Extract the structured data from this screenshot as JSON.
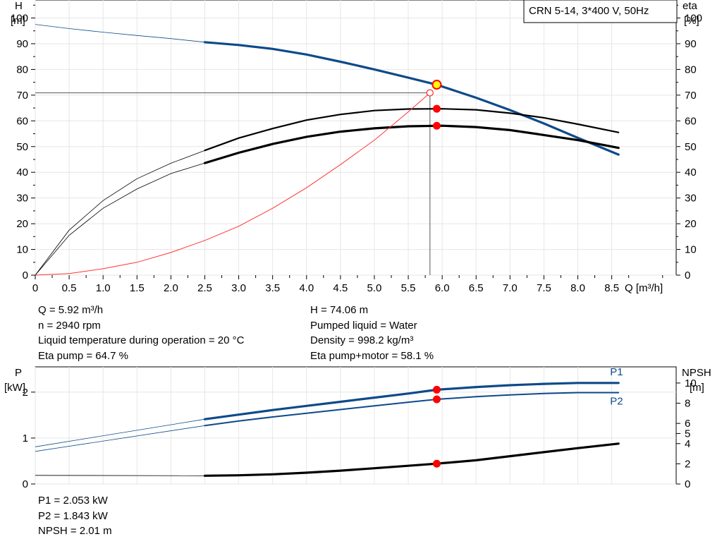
{
  "chart_data": [
    {
      "type": "line",
      "title": "CRN 5-14, 3*400 V, 50Hz",
      "xlabel": "Q [m³/h]",
      "ylabel_left_unit": "H",
      "ylabel_left_sub": "[m]",
      "ylabel_right_unit": "eta",
      "ylabel_right_sub": "[%]",
      "xlim": [
        0,
        9.45
      ],
      "ylim_left": [
        0,
        107
      ],
      "ylim_right": [
        0,
        107
      ],
      "x_ticks": [
        0,
        0.5,
        1.0,
        1.5,
        2.0,
        2.5,
        3.0,
        3.5,
        4.0,
        4.5,
        5.0,
        5.5,
        6.0,
        6.5,
        7.0,
        7.5,
        8.0,
        8.5
      ],
      "x_tick_labels": [
        "0",
        "0.5",
        "1.0",
        "1.5",
        "2.0",
        "2.5",
        "3.0",
        "3.5",
        "4.0",
        "4.5",
        "5.0",
        "5.5",
        "6.0",
        "6.5",
        "7.0",
        "7.5",
        "8.0",
        "8.5"
      ],
      "y_ticks": [
        0,
        10,
        20,
        30,
        40,
        50,
        60,
        70,
        80,
        90,
        100
      ],
      "y_tick_labels": [
        "0",
        "10",
        "20",
        "30",
        "40",
        "50",
        "60",
        "70",
        "80",
        "90",
        "100"
      ],
      "series": [
        {
          "key": "H",
          "axis": "left",
          "color": "#0d4a8a",
          "x_thin": [
            0,
            0.5,
            1.0,
            1.5,
            2.0,
            2.5
          ],
          "y_thin": [
            97.5,
            95.9,
            94.5,
            93.2,
            92.0,
            90.6
          ],
          "x": [
            2.5,
            3.0,
            3.5,
            4.0,
            4.5,
            5.0,
            5.5,
            5.92,
            6.5,
            7.0,
            7.5,
            8.0,
            8.6
          ],
          "y": [
            90.6,
            89.5,
            88.0,
            85.8,
            83.0,
            80.0,
            76.8,
            74.06,
            69.0,
            64.2,
            59.0,
            53.4,
            46.9
          ]
        },
        {
          "key": "eta_pump",
          "axis": "right",
          "color": "#000000",
          "x_thin": [
            0,
            0.5,
            1.0,
            1.5,
            2.0,
            2.5
          ],
          "y_thin": [
            0,
            17.5,
            29.0,
            37.5,
            43.5,
            48.5
          ],
          "x": [
            2.5,
            3.0,
            3.5,
            4.0,
            4.5,
            5.0,
            5.5,
            6.0,
            6.5,
            7.0,
            7.5,
            8.0,
            8.6
          ],
          "y": [
            48.5,
            53.3,
            57.0,
            60.3,
            62.5,
            64.0,
            64.6,
            64.7,
            64.3,
            63.0,
            61.2,
            58.7,
            55.5
          ]
        },
        {
          "key": "eta_total",
          "axis": "right",
          "color": "#000000",
          "x_thin": [
            0,
            0.5,
            1.0,
            1.5,
            2.0,
            2.5
          ],
          "y_thin": [
            0,
            15.5,
            26.0,
            33.5,
            39.5,
            43.6
          ],
          "x": [
            2.5,
            3.0,
            3.5,
            4.0,
            4.5,
            5.0,
            5.5,
            6.0,
            6.5,
            7.0,
            7.5,
            8.0,
            8.6
          ],
          "y": [
            43.6,
            47.6,
            51.0,
            53.8,
            55.8,
            57.1,
            57.9,
            58.1,
            57.6,
            56.4,
            54.5,
            52.5,
            49.5
          ]
        },
        {
          "key": "system_curve",
          "axis": "left",
          "color": "#ff3333",
          "x": [
            0,
            0.5,
            1.0,
            1.5,
            2.0,
            2.5,
            3.0,
            3.5,
            4.0,
            4.5,
            5.0,
            5.5,
            5.82
          ],
          "y": [
            0,
            0.6,
            2.5,
            5.0,
            8.8,
            13.5,
            19.0,
            26.0,
            34.0,
            43.0,
            52.5,
            63.5,
            70.9
          ]
        }
      ],
      "duty_point": {
        "q": 5.92,
        "h": 74.06,
        "eta_pump": 64.7,
        "eta_total": 58.1
      },
      "required_point": {
        "q": 5.82,
        "h": 70.9
      }
    },
    {
      "type": "line",
      "ylabel_left_unit": "P",
      "ylabel_left_sub": "[kW]",
      "ylabel_right_unit": "NPSH",
      "ylabel_right_sub": "[m]",
      "xlim": [
        0,
        9.45
      ],
      "ylim_left": [
        0,
        2.55
      ],
      "ylim_right": [
        0,
        11.6
      ],
      "y_left_ticks": [
        0,
        1,
        2
      ],
      "y_left_tick_labels": [
        "0",
        "1",
        "2"
      ],
      "y_right_ticks": [
        0,
        2,
        4,
        5,
        6,
        8,
        10
      ],
      "y_right_tick_labels": [
        "0",
        "2",
        "4",
        "5",
        "6",
        "8",
        "10"
      ],
      "series": [
        {
          "key": "P1",
          "name": "P1",
          "axis": "left",
          "color": "#0d4a8a",
          "x_thin": [
            0,
            2.5
          ],
          "y_thin": [
            0.81,
            1.41
          ],
          "x": [
            2.5,
            3.0,
            3.5,
            4.0,
            4.5,
            5.0,
            5.5,
            5.92,
            6.5,
            7.0,
            7.5,
            8.0,
            8.6
          ],
          "y": [
            1.41,
            1.51,
            1.61,
            1.7,
            1.79,
            1.88,
            1.97,
            2.053,
            2.11,
            2.15,
            2.18,
            2.2,
            2.2
          ]
        },
        {
          "key": "P2",
          "name": "P2",
          "axis": "left",
          "color": "#0d4a8a",
          "x_thin": [
            0,
            2.5
          ],
          "y_thin": [
            0.71,
            1.27
          ],
          "x": [
            2.5,
            3.0,
            3.5,
            4.0,
            4.5,
            5.0,
            5.5,
            5.92,
            6.5,
            7.0,
            7.5,
            8.0,
            8.6
          ],
          "y": [
            1.27,
            1.37,
            1.46,
            1.54,
            1.62,
            1.7,
            1.78,
            1.843,
            1.9,
            1.94,
            1.97,
            1.99,
            1.99
          ]
        },
        {
          "key": "NPSH",
          "axis": "right",
          "color": "#000000",
          "x_thin": [
            0,
            2.5
          ],
          "y_thin": [
            0.85,
            0.82
          ],
          "x": [
            2.5,
            3.0,
            3.5,
            4.0,
            4.5,
            5.0,
            5.5,
            5.92,
            6.5,
            7.0,
            7.5,
            8.0,
            8.6
          ],
          "y": [
            0.82,
            0.86,
            0.96,
            1.12,
            1.32,
            1.56,
            1.8,
            2.01,
            2.35,
            2.75,
            3.15,
            3.55,
            4.0
          ]
        }
      ],
      "duty_point": {
        "q": 5.92,
        "p1": 2.053,
        "p2": 1.843,
        "npsh": 2.01
      }
    }
  ],
  "info_left": [
    "Q = 5.92 m³/h",
    "n = 2940 rpm",
    "Liquid temperature during operation = 20 °C",
    "Eta pump = 64.7 %"
  ],
  "info_right": [
    "H = 74.06 m",
    "Pumped liquid = Water",
    "Density = 998.2 kg/m³",
    "Eta pump+motor = 58.1 %"
  ],
  "info_bottom": [
    "P1 = 2.053 kW",
    "P2 = 1.843 kW",
    "NPSH = 2.01 m"
  ],
  "colors": {
    "blue": "#0d4a8a",
    "red": "#ff0000",
    "marker_yellow": "#ffff00",
    "grid": "#e6e6e6"
  }
}
